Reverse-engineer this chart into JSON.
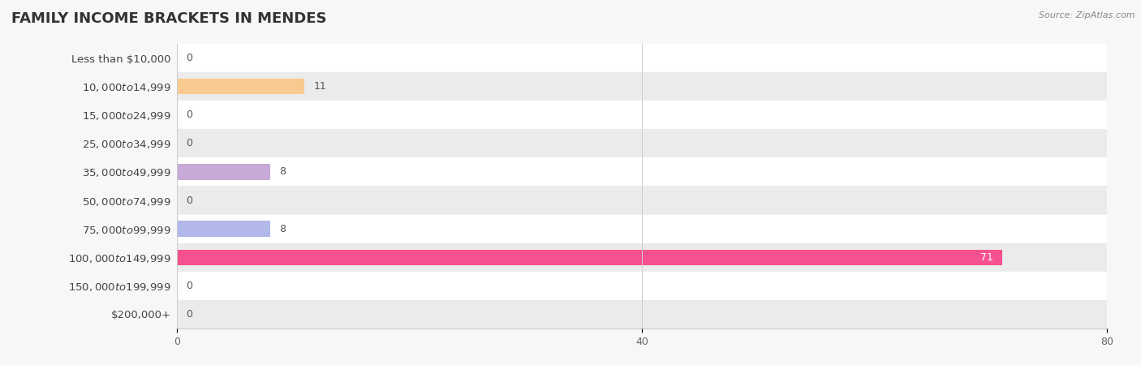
{
  "title": "FAMILY INCOME BRACKETS IN MENDES",
  "source": "Source: ZipAtlas.com",
  "categories": [
    "Less than $10,000",
    "$10,000 to $14,999",
    "$15,000 to $24,999",
    "$25,000 to $34,999",
    "$35,000 to $49,999",
    "$50,000 to $74,999",
    "$75,000 to $99,999",
    "$100,000 to $149,999",
    "$150,000 to $199,999",
    "$200,000+"
  ],
  "values": [
    0,
    11,
    0,
    0,
    8,
    0,
    8,
    71,
    0,
    0
  ],
  "bar_colors": [
    "#f2a0aa",
    "#f9ca90",
    "#f2a0aa",
    "#aac4e2",
    "#c8aad8",
    "#7ecec6",
    "#b2b8ea",
    "#f55090",
    "#f9ca90",
    "#f2a0aa"
  ],
  "background_color": "#f7f7f7",
  "xlim": [
    0,
    80
  ],
  "xticks": [
    0,
    40,
    80
  ],
  "bar_height": 0.55,
  "title_fontsize": 13,
  "label_fontsize": 9.5,
  "value_fontsize": 9
}
